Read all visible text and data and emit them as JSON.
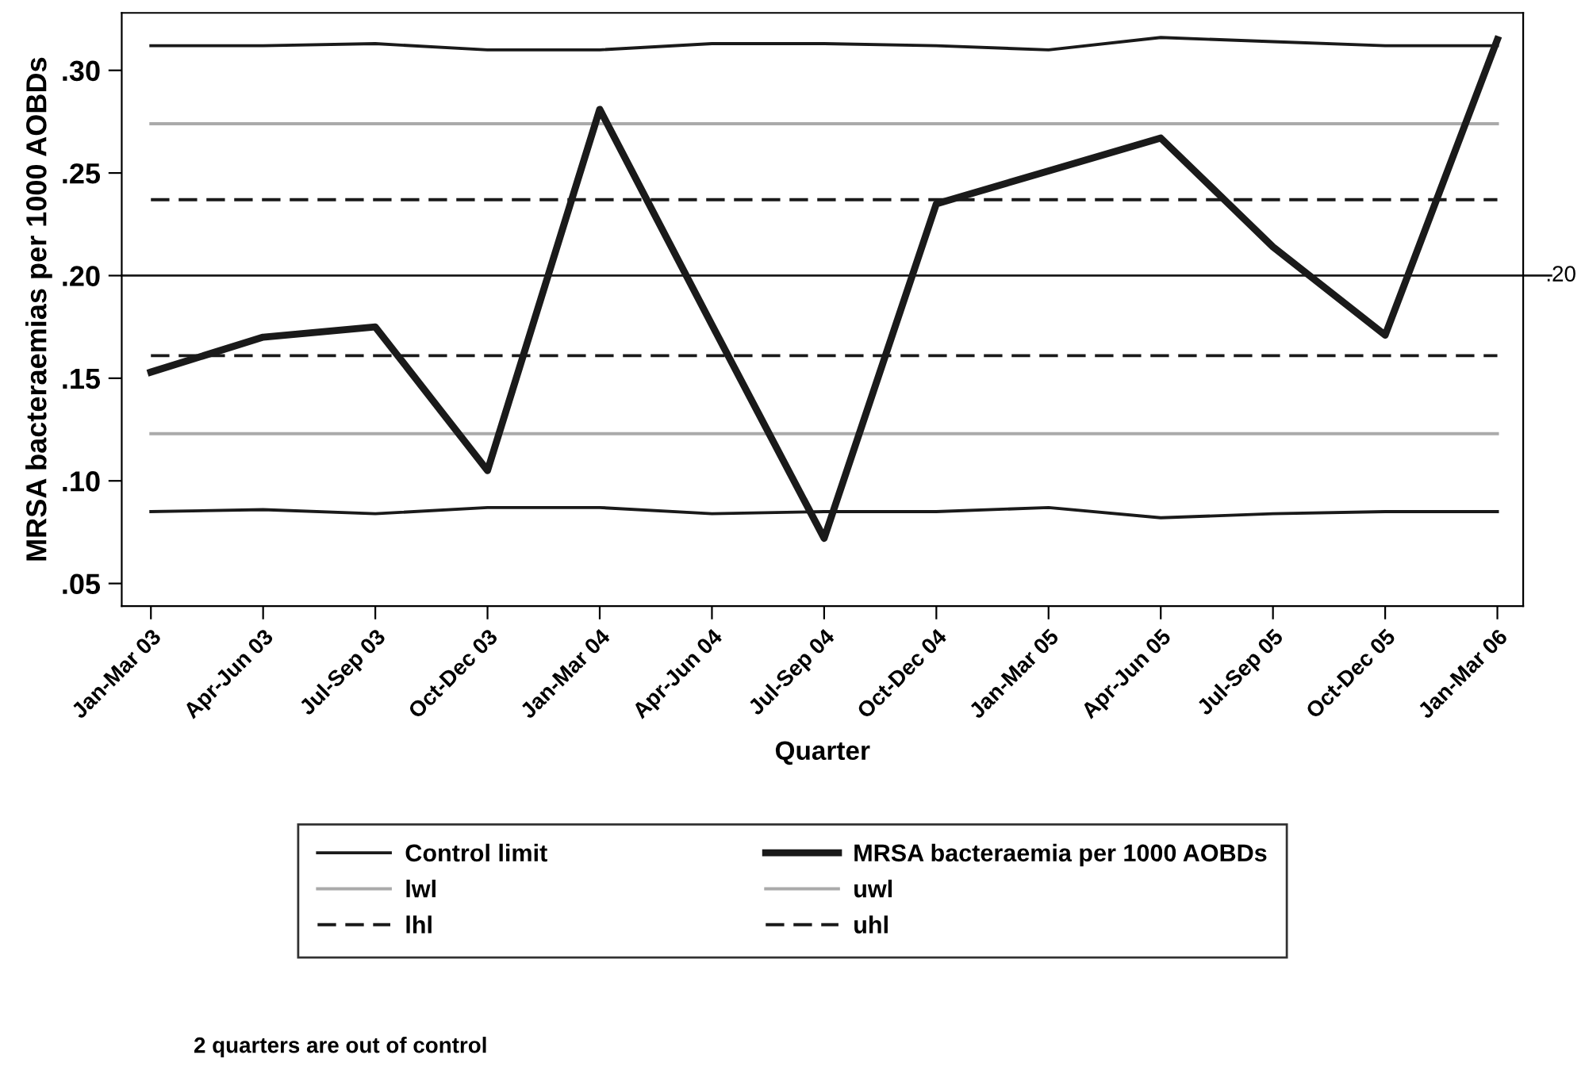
{
  "chart_data": {
    "type": "line",
    "xlabel": "Quarter",
    "ylabel": "MRSA bacteraemias per 1000 AOBDs",
    "categories": [
      "Jan-Mar 03",
      "Apr-Jun 03",
      "Jul-Sep 03",
      "Oct-Dec 03",
      "Jan-Mar 04",
      "Apr-Jun 04",
      "Jul-Sep 04",
      "Oct-Dec 04",
      "Jan-Mar 05",
      "Apr-Jun 05",
      "Jul-Sep 05",
      "Oct-Dec 05",
      "Jan-Mar 06"
    ],
    "series": [
      {
        "name": "Control limit",
        "color": "#1a1a1a",
        "line_style": "solid",
        "values": [
          0.312,
          0.312,
          0.313,
          0.31,
          0.31,
          0.313,
          0.313,
          0.312,
          0.31,
          0.316,
          0.314,
          0.312,
          0.312
        ]
      },
      {
        "color": "#1a1a1a",
        "line_style": "solid",
        "values": [
          0.085,
          0.086,
          0.084,
          0.087,
          0.087,
          0.084,
          0.085,
          0.085,
          0.087,
          0.082,
          0.084,
          0.085,
          0.085
        ]
      },
      {
        "name": "MRSA bacteraemia per 1000 AOBDs",
        "color": "#1a1a1a",
        "line_style": "solid",
        "values": [
          0.153,
          0.17,
          0.175,
          0.105,
          0.281,
          0.176,
          0.072,
          0.235,
          0.251,
          0.267,
          0.214,
          0.171,
          0.315
        ]
      },
      {
        "name": "lwl",
        "color": "#aaaaaa",
        "line_style": "solid",
        "values": [
          0.123,
          0.123,
          0.123,
          0.123,
          0.123,
          0.123,
          0.123,
          0.123,
          0.123,
          0.123,
          0.123,
          0.123,
          0.123
        ]
      },
      {
        "name": "uwl",
        "color": "#aaaaaa",
        "line_style": "solid",
        "values": [
          0.274,
          0.274,
          0.274,
          0.274,
          0.274,
          0.274,
          0.274,
          0.274,
          0.274,
          0.274,
          0.274,
          0.274,
          0.274
        ]
      },
      {
        "name": "lhl",
        "color": "#1a1a1a",
        "line_style": "dashed",
        "values": [
          0.161,
          0.161,
          0.161,
          0.161,
          0.161,
          0.161,
          0.161,
          0.161,
          0.161,
          0.161,
          0.161,
          0.161,
          0.161
        ]
      },
      {
        "name": "uhl",
        "color": "#1a1a1a",
        "line_style": "dashed",
        "values": [
          0.237,
          0.237,
          0.237,
          0.237,
          0.237,
          0.237,
          0.237,
          0.237,
          0.237,
          0.237,
          0.237,
          0.237,
          0.237
        ]
      }
    ],
    "ylim": [
      0.039,
      0.328
    ],
    "yticks": [
      {
        "value": 0.05,
        "label": ".05"
      },
      {
        "value": 0.1,
        "label": ".10"
      },
      {
        "value": 0.15,
        "label": ".15"
      },
      {
        "value": 0.2,
        "label": ".20"
      },
      {
        "value": 0.25,
        "label": ".25"
      },
      {
        "value": 0.3,
        "label": ".30"
      }
    ],
    "ref_lines": [
      {
        "axis": "y",
        "value": 0.2,
        "label": ".20",
        "color": "#1a1a1a"
      }
    ],
    "grid": false,
    "legend": "bottom",
    "marker": "none",
    "annotations": [
      "2 quarters are out of control"
    ]
  }
}
